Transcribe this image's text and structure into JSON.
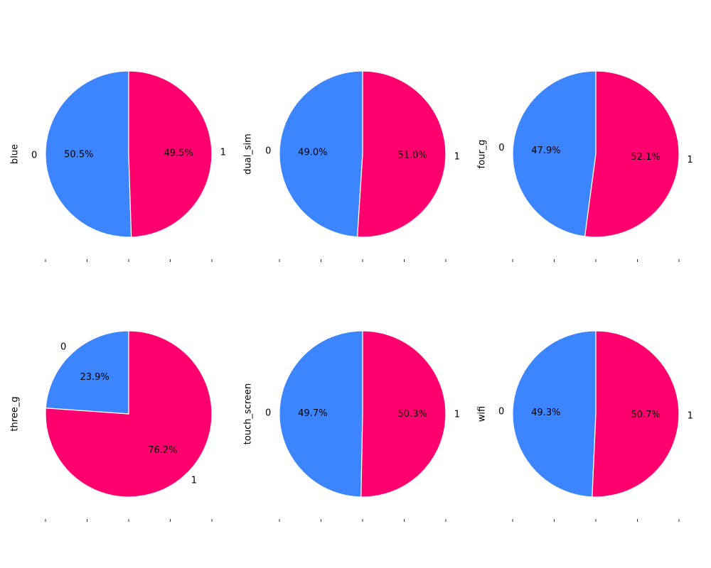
{
  "chart_data": [
    {
      "type": "pie",
      "ylabel": "blue",
      "slices": [
        {
          "label": "0",
          "value": 50.5,
          "pct_text": "50.5%"
        },
        {
          "label": "1",
          "value": 49.5,
          "pct_text": "49.5%"
        }
      ]
    },
    {
      "type": "pie",
      "ylabel": "dual_sim",
      "slices": [
        {
          "label": "0",
          "value": 49.0,
          "pct_text": "49.0%"
        },
        {
          "label": "1",
          "value": 51.0,
          "pct_text": "51.0%"
        }
      ]
    },
    {
      "type": "pie",
      "ylabel": "four_g",
      "slices": [
        {
          "label": "0",
          "value": 47.9,
          "pct_text": "47.9%"
        },
        {
          "label": "1",
          "value": 52.1,
          "pct_text": "52.1%"
        }
      ]
    },
    {
      "type": "pie",
      "ylabel": "three_g",
      "slices": [
        {
          "label": "0",
          "value": 23.9,
          "pct_text": "23.9%"
        },
        {
          "label": "1",
          "value": 76.2,
          "pct_text": "76.2%"
        }
      ]
    },
    {
      "type": "pie",
      "ylabel": "touch_screen",
      "slices": [
        {
          "label": "0",
          "value": 49.7,
          "pct_text": "49.7%"
        },
        {
          "label": "1",
          "value": 50.3,
          "pct_text": "50.3%"
        }
      ]
    },
    {
      "type": "pie",
      "ylabel": "wifi",
      "slices": [
        {
          "label": "0",
          "value": 49.3,
          "pct_text": "49.3%"
        },
        {
          "label": "1",
          "value": 50.7,
          "pct_text": "50.7%"
        }
      ]
    }
  ],
  "colors": {
    "slice_0": "#3d85ff",
    "slice_1": "#ff006e",
    "edge": "#ffffff"
  }
}
